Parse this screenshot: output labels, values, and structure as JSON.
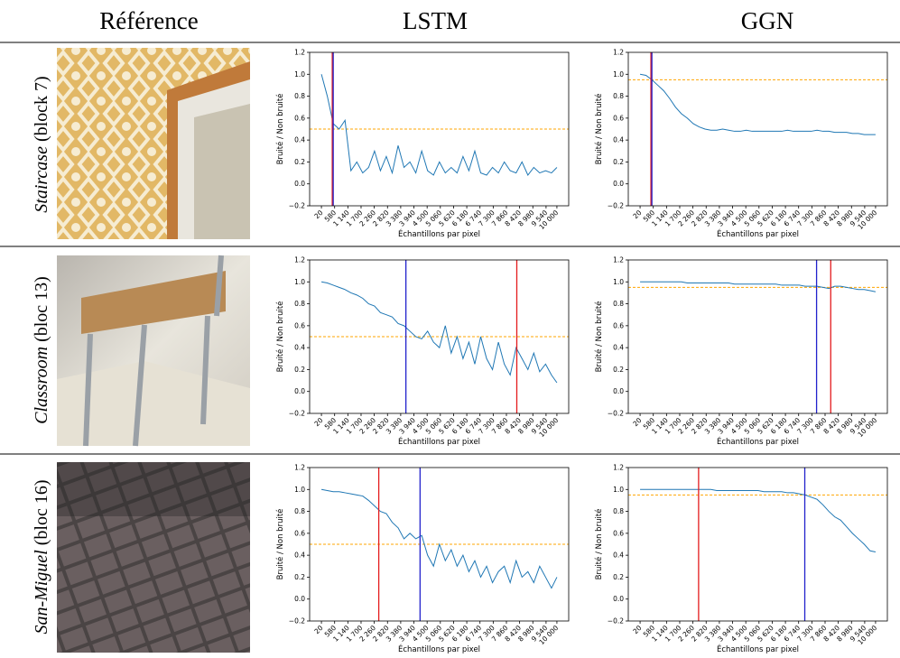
{
  "header": {
    "reference": "Référence",
    "lstm": "LSTM",
    "ggn": "GGN"
  },
  "rows": [
    {
      "scene": "Staircase",
      "block": "(block 7)"
    },
    {
      "scene": "Classroom",
      "block": "(bloc 13)"
    },
    {
      "scene": "San-Miguel",
      "block": "(bloc 16)"
    }
  ],
  "chart_data": [
    {
      "type": "line",
      "xlabel": "Échantillons par pixel",
      "ylabel": "Bruité / Non bruité",
      "xlim": [
        -480,
        10500
      ],
      "ylim": [
        -0.2,
        1.2
      ],
      "xticks": [
        20,
        580,
        {
          "value": 1140,
          "label": "1 140"
        },
        {
          "value": 1700,
          "label": "1 700"
        },
        {
          "value": 2260,
          "label": "2 260"
        },
        {
          "value": 2820,
          "label": "2 820"
        },
        {
          "value": 3380,
          "label": "3 380"
        },
        {
          "value": 3940,
          "label": "3 940"
        },
        {
          "value": 4500,
          "label": "4 500"
        },
        {
          "value": 5060,
          "label": "5 060"
        },
        {
          "value": 5620,
          "label": "5 620"
        },
        {
          "value": 6180,
          "label": "6 180"
        },
        {
          "value": 6740,
          "label": "6 740"
        },
        {
          "value": 7300,
          "label": "7 300"
        },
        {
          "value": 7860,
          "label": "7 860"
        },
        {
          "value": 8420,
          "label": "8 420"
        },
        {
          "value": 8980,
          "label": "8 980"
        },
        {
          "value": 9540,
          "label": "9 540"
        },
        {
          "value": 10000,
          "label": "10 000"
        }
      ],
      "yticks": [
        {
          "value": -0.2,
          "label": "−0.2"
        },
        {
          "value": 0,
          "label": "0.0"
        },
        0.2,
        0.4,
        0.6,
        0.8,
        {
          "value": 1,
          "label": "1.0"
        },
        1.2
      ],
      "x": [
        20,
        270,
        520,
        770,
        1020,
        1270,
        1520,
        1770,
        2020,
        2270,
        2520,
        2770,
        3020,
        3270,
        3520,
        3770,
        4020,
        4270,
        4520,
        4770,
        5020,
        5270,
        5520,
        5770,
        6020,
        6270,
        6520,
        6770,
        7020,
        7270,
        7520,
        7770,
        8020,
        8270,
        8520,
        8770,
        9020,
        9270,
        9520,
        9770,
        10000
      ],
      "values": [
        1.0,
        0.8,
        0.55,
        0.5,
        0.58,
        0.12,
        0.2,
        0.1,
        0.15,
        0.3,
        0.12,
        0.25,
        0.1,
        0.35,
        0.15,
        0.2,
        0.1,
        0.3,
        0.12,
        0.08,
        0.2,
        0.1,
        0.15,
        0.1,
        0.25,
        0.12,
        0.3,
        0.1,
        0.08,
        0.15,
        0.1,
        0.2,
        0.12,
        0.1,
        0.2,
        0.08,
        0.15,
        0.1,
        0.12,
        0.1,
        0.15
      ],
      "color": "#1f77b4",
      "vlines": [
        {
          "value": 480,
          "color": "#e41a1c"
        },
        {
          "value": 520,
          "color": "#2222cc"
        }
      ],
      "threshold": {
        "value": 0.5,
        "color": "orange"
      }
    },
    {
      "type": "line",
      "xlabel": "Échantillons par pixel",
      "ylabel": "Bruité / Non bruité",
      "xlim": [
        -480,
        10500
      ],
      "ylim": [
        -0.2,
        1.2
      ],
      "xticks": [
        20,
        580,
        {
          "value": 1140,
          "label": "1 140"
        },
        {
          "value": 1700,
          "label": "1 700"
        },
        {
          "value": 2260,
          "label": "2 260"
        },
        {
          "value": 2820,
          "label": "2 820"
        },
        {
          "value": 3380,
          "label": "3 380"
        },
        {
          "value": 3940,
          "label": "3 940"
        },
        {
          "value": 4500,
          "label": "4 500"
        },
        {
          "value": 5060,
          "label": "5 060"
        },
        {
          "value": 5620,
          "label": "5 620"
        },
        {
          "value": 6180,
          "label": "6 180"
        },
        {
          "value": 6740,
          "label": "6 740"
        },
        {
          "value": 7300,
          "label": "7 300"
        },
        {
          "value": 7860,
          "label": "7 860"
        },
        {
          "value": 8420,
          "label": "8 420"
        },
        {
          "value": 8980,
          "label": "8 980"
        },
        {
          "value": 9540,
          "label": "9 540"
        },
        {
          "value": 10000,
          "label": "10 000"
        }
      ],
      "yticks": [
        {
          "value": -0.2,
          "label": "−0.2"
        },
        {
          "value": 0,
          "label": "0.0"
        },
        0.2,
        0.4,
        0.6,
        0.8,
        {
          "value": 1,
          "label": "1.0"
        },
        1.2
      ],
      "x": [
        20,
        270,
        520,
        770,
        1020,
        1270,
        1520,
        1770,
        2020,
        2270,
        2520,
        2770,
        3020,
        3270,
        3520,
        3770,
        4020,
        4270,
        4520,
        4770,
        5020,
        5270,
        5520,
        5770,
        6020,
        6270,
        6520,
        6770,
        7020,
        7270,
        7520,
        7770,
        8020,
        8270,
        8520,
        8770,
        9020,
        9270,
        9520,
        9770,
        10000
      ],
      "values": [
        1.0,
        0.99,
        0.95,
        0.9,
        0.85,
        0.78,
        0.7,
        0.64,
        0.6,
        0.55,
        0.52,
        0.5,
        0.49,
        0.49,
        0.5,
        0.49,
        0.48,
        0.48,
        0.49,
        0.48,
        0.48,
        0.48,
        0.48,
        0.48,
        0.48,
        0.49,
        0.48,
        0.48,
        0.48,
        0.48,
        0.49,
        0.48,
        0.48,
        0.47,
        0.47,
        0.47,
        0.46,
        0.46,
        0.45,
        0.45,
        0.45
      ],
      "color": "#1f77b4",
      "vlines": [
        {
          "value": 480,
          "color": "#e41a1c"
        },
        {
          "value": 520,
          "color": "#2222cc"
        }
      ],
      "threshold": {
        "value": 0.95,
        "color": "orange"
      }
    },
    {
      "type": "line",
      "xlabel": "Échantillons par pixel",
      "ylabel": "Bruité / Non bruité",
      "xlim": [
        -480,
        10500
      ],
      "ylim": [
        -0.2,
        1.2
      ],
      "xticks": [
        20,
        580,
        {
          "value": 1140,
          "label": "1 140"
        },
        {
          "value": 1700,
          "label": "1 700"
        },
        {
          "value": 2260,
          "label": "2 260"
        },
        {
          "value": 2820,
          "label": "2 820"
        },
        {
          "value": 3380,
          "label": "3 380"
        },
        {
          "value": 3940,
          "label": "3 940"
        },
        {
          "value": 4500,
          "label": "4 500"
        },
        {
          "value": 5060,
          "label": "5 060"
        },
        {
          "value": 5620,
          "label": "5 620"
        },
        {
          "value": 6180,
          "label": "6 180"
        },
        {
          "value": 6740,
          "label": "6 740"
        },
        {
          "value": 7300,
          "label": "7 300"
        },
        {
          "value": 7860,
          "label": "7 860"
        },
        {
          "value": 8420,
          "label": "8 420"
        },
        {
          "value": 8980,
          "label": "8 980"
        },
        {
          "value": 9540,
          "label": "9 540"
        },
        {
          "value": 10000,
          "label": "10 000"
        }
      ],
      "yticks": [
        {
          "value": -0.2,
          "label": "−0.2"
        },
        {
          "value": 0,
          "label": "0.0"
        },
        0.2,
        0.4,
        0.6,
        0.8,
        {
          "value": 1,
          "label": "1.0"
        },
        1.2
      ],
      "x": [
        20,
        270,
        520,
        770,
        1020,
        1270,
        1520,
        1770,
        2020,
        2270,
        2520,
        2770,
        3020,
        3270,
        3520,
        3770,
        4020,
        4270,
        4520,
        4770,
        5020,
        5270,
        5520,
        5770,
        6020,
        6270,
        6520,
        6770,
        7020,
        7270,
        7520,
        7770,
        8020,
        8270,
        8520,
        8770,
        9020,
        9270,
        9520,
        9770,
        10000
      ],
      "values": [
        1.0,
        0.99,
        0.97,
        0.95,
        0.93,
        0.9,
        0.88,
        0.85,
        0.8,
        0.78,
        0.72,
        0.7,
        0.68,
        0.62,
        0.6,
        0.55,
        0.5,
        0.48,
        0.55,
        0.45,
        0.4,
        0.6,
        0.35,
        0.5,
        0.3,
        0.45,
        0.25,
        0.5,
        0.3,
        0.2,
        0.45,
        0.25,
        0.15,
        0.4,
        0.3,
        0.2,
        0.35,
        0.18,
        0.25,
        0.15,
        0.08
      ],
      "color": "#1f77b4",
      "vlines": [
        {
          "value": 3600,
          "color": "#2222cc"
        },
        {
          "value": 8300,
          "color": "#e41a1c"
        }
      ],
      "threshold": {
        "value": 0.5,
        "color": "orange"
      }
    },
    {
      "type": "line",
      "xlabel": "Échantillons par pixel",
      "ylabel": "Bruité / Non bruité",
      "xlim": [
        -480,
        10500
      ],
      "ylim": [
        -0.2,
        1.2
      ],
      "xticks": [
        20,
        580,
        {
          "value": 1140,
          "label": "1 140"
        },
        {
          "value": 1700,
          "label": "1 700"
        },
        {
          "value": 2260,
          "label": "2 260"
        },
        {
          "value": 2820,
          "label": "2 820"
        },
        {
          "value": 3380,
          "label": "3 380"
        },
        {
          "value": 3940,
          "label": "3 940"
        },
        {
          "value": 4500,
          "label": "4 500"
        },
        {
          "value": 5060,
          "label": "5 060"
        },
        {
          "value": 5620,
          "label": "5 620"
        },
        {
          "value": 6180,
          "label": "6 180"
        },
        {
          "value": 6740,
          "label": "6 740"
        },
        {
          "value": 7300,
          "label": "7 300"
        },
        {
          "value": 7860,
          "label": "7 860"
        },
        {
          "value": 8420,
          "label": "8 420"
        },
        {
          "value": 8980,
          "label": "8 980"
        },
        {
          "value": 9540,
          "label": "9 540"
        },
        {
          "value": 10000,
          "label": "10 000"
        }
      ],
      "yticks": [
        {
          "value": -0.2,
          "label": "−0.2"
        },
        {
          "value": 0,
          "label": "0.0"
        },
        0.2,
        0.4,
        0.6,
        0.8,
        {
          "value": 1,
          "label": "1.0"
        },
        1.2
      ],
      "x": [
        20,
        270,
        520,
        770,
        1020,
        1270,
        1520,
        1770,
        2020,
        2270,
        2520,
        2770,
        3020,
        3270,
        3520,
        3770,
        4020,
        4270,
        4520,
        4770,
        5020,
        5270,
        5520,
        5770,
        6020,
        6270,
        6520,
        6770,
        7020,
        7270,
        7520,
        7770,
        8020,
        8270,
        8520,
        8770,
        9020,
        9270,
        9520,
        9770,
        10000
      ],
      "values": [
        1.0,
        1.0,
        1.0,
        1.0,
        1.0,
        1.0,
        1.0,
        1.0,
        0.99,
        0.99,
        0.99,
        0.99,
        0.99,
        0.99,
        0.99,
        0.99,
        0.98,
        0.98,
        0.98,
        0.98,
        0.98,
        0.98,
        0.98,
        0.98,
        0.97,
        0.97,
        0.97,
        0.97,
        0.96,
        0.96,
        0.96,
        0.95,
        0.94,
        0.96,
        0.96,
        0.95,
        0.94,
        0.93,
        0.93,
        0.92,
        0.91
      ],
      "color": "#1f77b4",
      "vlines": [
        {
          "value": 7500,
          "color": "#2222cc"
        },
        {
          "value": 8100,
          "color": "#e41a1c"
        }
      ],
      "threshold": {
        "value": 0.95,
        "color": "orange"
      }
    },
    {
      "type": "line",
      "xlabel": "Échantillons par pixel",
      "ylabel": "Bruité / Non bruité",
      "xlim": [
        -480,
        10500
      ],
      "ylim": [
        -0.2,
        1.2
      ],
      "xticks": [
        20,
        580,
        {
          "value": 1140,
          "label": "1 140"
        },
        {
          "value": 1700,
          "label": "1 700"
        },
        {
          "value": 2260,
          "label": "2 260"
        },
        {
          "value": 2820,
          "label": "2 820"
        },
        {
          "value": 3380,
          "label": "3 380"
        },
        {
          "value": 3940,
          "label": "3 940"
        },
        {
          "value": 4500,
          "label": "4 500"
        },
        {
          "value": 5060,
          "label": "5 060"
        },
        {
          "value": 5620,
          "label": "5 620"
        },
        {
          "value": 6180,
          "label": "6 180"
        },
        {
          "value": 6740,
          "label": "6 740"
        },
        {
          "value": 7300,
          "label": "7 300"
        },
        {
          "value": 7860,
          "label": "7 860"
        },
        {
          "value": 8420,
          "label": "8 420"
        },
        {
          "value": 8980,
          "label": "8 980"
        },
        {
          "value": 9540,
          "label": "9 540"
        },
        {
          "value": 10000,
          "label": "10 000"
        }
      ],
      "yticks": [
        {
          "value": -0.2,
          "label": "−0.2"
        },
        {
          "value": 0,
          "label": "0.0"
        },
        0.2,
        0.4,
        0.6,
        0.8,
        {
          "value": 1,
          "label": "1.0"
        },
        1.2
      ],
      "x": [
        20,
        270,
        520,
        770,
        1020,
        1270,
        1520,
        1770,
        2020,
        2270,
        2520,
        2770,
        3020,
        3270,
        3520,
        3770,
        4020,
        4270,
        4520,
        4770,
        5020,
        5270,
        5520,
        5770,
        6020,
        6270,
        6520,
        6770,
        7020,
        7270,
        7520,
        7770,
        8020,
        8270,
        8520,
        8770,
        9020,
        9270,
        9520,
        9770,
        10000
      ],
      "values": [
        1.0,
        0.99,
        0.98,
        0.98,
        0.97,
        0.96,
        0.95,
        0.94,
        0.9,
        0.85,
        0.8,
        0.78,
        0.7,
        0.65,
        0.55,
        0.6,
        0.55,
        0.58,
        0.4,
        0.3,
        0.5,
        0.35,
        0.45,
        0.3,
        0.4,
        0.25,
        0.35,
        0.2,
        0.3,
        0.15,
        0.25,
        0.3,
        0.15,
        0.35,
        0.2,
        0.25,
        0.15,
        0.3,
        0.2,
        0.1,
        0.2
      ],
      "color": "#1f77b4",
      "vlines": [
        {
          "value": 2450,
          "color": "#e41a1c"
        },
        {
          "value": 4200,
          "color": "#2222cc"
        }
      ],
      "threshold": {
        "value": 0.5,
        "color": "orange"
      }
    },
    {
      "type": "line",
      "xlabel": "Échantillons par pixel",
      "ylabel": "Bruité / Non bruité",
      "xlim": [
        -480,
        10500
      ],
      "ylim": [
        -0.2,
        1.2
      ],
      "xticks": [
        20,
        580,
        {
          "value": 1140,
          "label": "1 140"
        },
        {
          "value": 1700,
          "label": "1 700"
        },
        {
          "value": 2260,
          "label": "2 260"
        },
        {
          "value": 2820,
          "label": "2 820"
        },
        {
          "value": 3380,
          "label": "3 380"
        },
        {
          "value": 3940,
          "label": "3 940"
        },
        {
          "value": 4500,
          "label": "4 500"
        },
        {
          "value": 5060,
          "label": "5 060"
        },
        {
          "value": 5620,
          "label": "5 620"
        },
        {
          "value": 6180,
          "label": "6 180"
        },
        {
          "value": 6740,
          "label": "6 740"
        },
        {
          "value": 7300,
          "label": "7 300"
        },
        {
          "value": 7860,
          "label": "7 860"
        },
        {
          "value": 8420,
          "label": "8 420"
        },
        {
          "value": 8980,
          "label": "8 980"
        },
        {
          "value": 9540,
          "label": "9 540"
        },
        {
          "value": 10000,
          "label": "10 000"
        }
      ],
      "yticks": [
        {
          "value": -0.2,
          "label": "−0.2"
        },
        {
          "value": 0,
          "label": "0.0"
        },
        0.2,
        0.4,
        0.6,
        0.8,
        {
          "value": 1,
          "label": "1.0"
        },
        1.2
      ],
      "x": [
        20,
        270,
        520,
        770,
        1020,
        1270,
        1520,
        1770,
        2020,
        2270,
        2520,
        2770,
        3020,
        3270,
        3520,
        3770,
        4020,
        4270,
        4520,
        4770,
        5020,
        5270,
        5520,
        5770,
        6020,
        6270,
        6520,
        6770,
        7020,
        7270,
        7520,
        7770,
        8020,
        8270,
        8520,
        8770,
        9020,
        9270,
        9520,
        9770,
        10000
      ],
      "values": [
        1.0,
        1.0,
        1.0,
        1.0,
        1.0,
        1.0,
        1.0,
        1.0,
        1.0,
        1.0,
        1.0,
        1.0,
        1.0,
        0.99,
        0.99,
        0.99,
        0.99,
        0.99,
        0.99,
        0.99,
        0.99,
        0.98,
        0.98,
        0.98,
        0.98,
        0.97,
        0.97,
        0.96,
        0.95,
        0.93,
        0.91,
        0.86,
        0.8,
        0.75,
        0.72,
        0.66,
        0.6,
        0.55,
        0.5,
        0.44,
        0.43
      ],
      "color": "#1f77b4",
      "vlines": [
        {
          "value": 2500,
          "color": "#e41a1c"
        },
        {
          "value": 7000,
          "color": "#2222cc"
        }
      ],
      "threshold": {
        "value": 0.95,
        "color": "orange"
      }
    }
  ]
}
